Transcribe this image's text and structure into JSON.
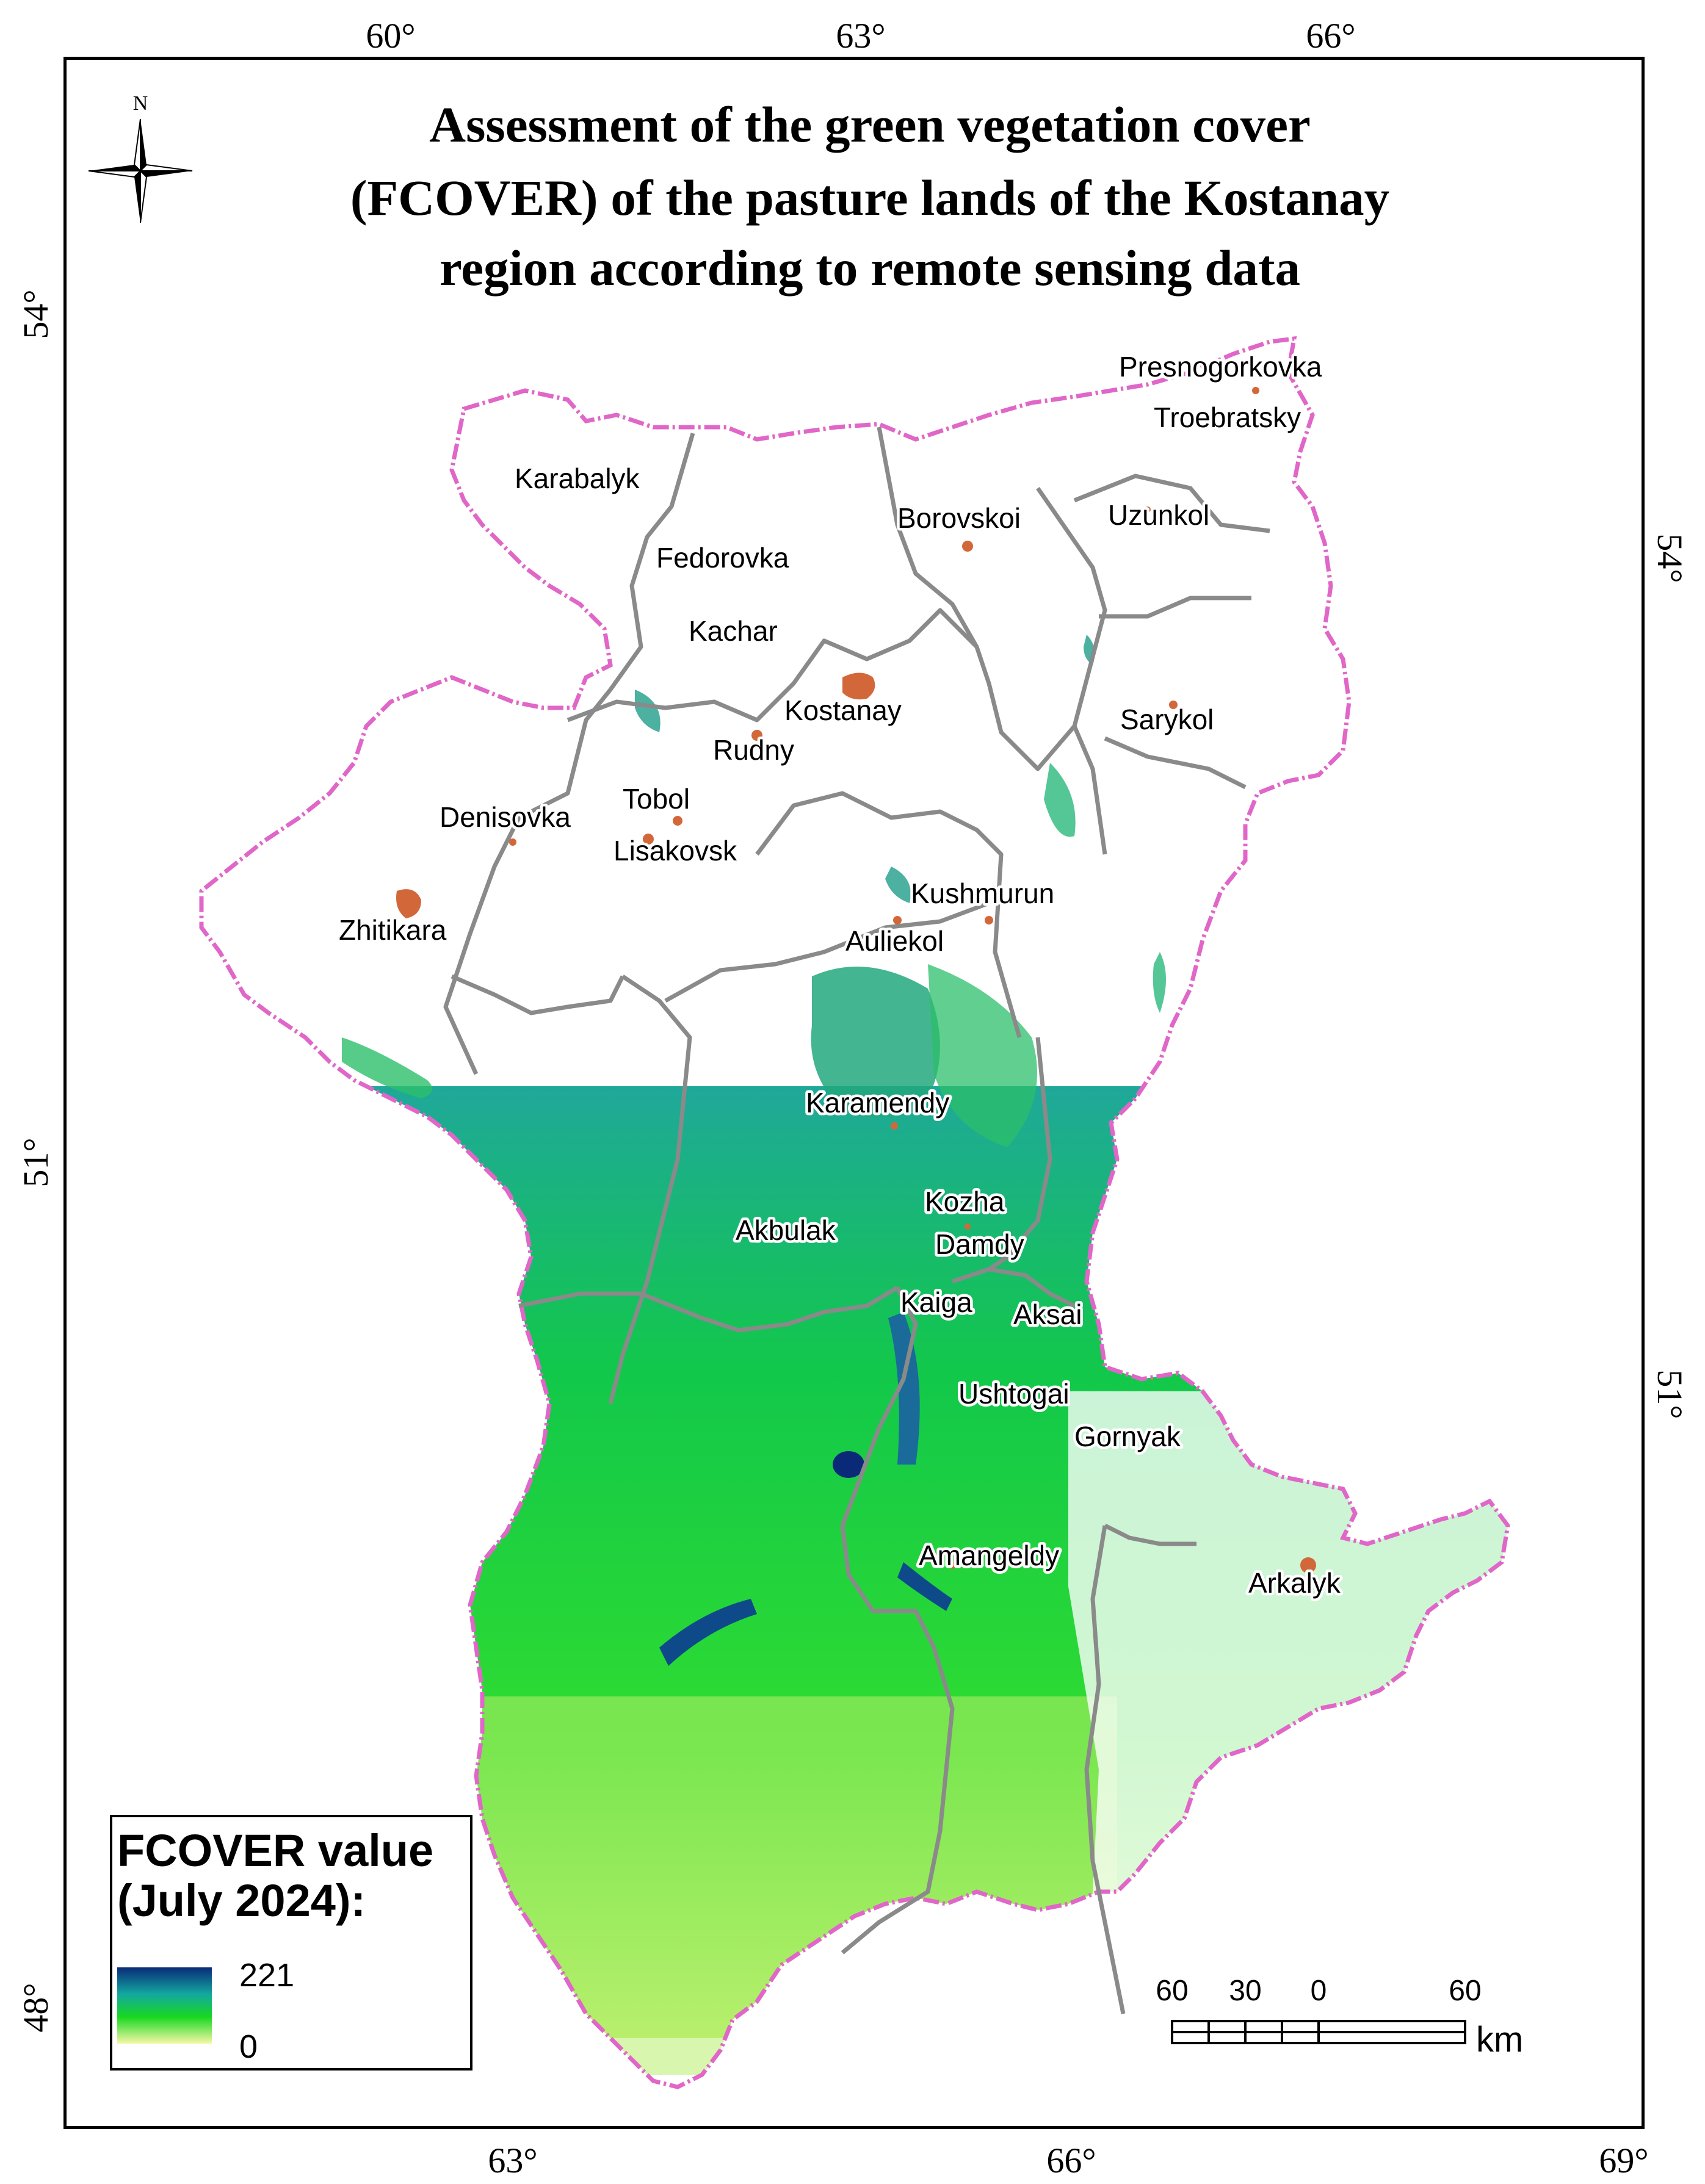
{
  "title": {
    "line1": "Assessment of the green vegetation cover",
    "line2": "(FCOVER) of the pasture lands of the Kostanay",
    "line3": "region according to remote sensing data"
  },
  "north_arrow": {
    "label": "N"
  },
  "graticule": {
    "top": [
      "60°",
      "63°",
      "66°"
    ],
    "bottom": [
      "63°",
      "66°",
      "69°"
    ],
    "left": [
      "54°",
      "51°",
      "48°"
    ],
    "right": [
      "54°",
      "51°"
    ]
  },
  "places": [
    "Presnogorkovka",
    "Troebratsky",
    "Karabalyk",
    "Borovskoi",
    "Uzunkol",
    "Fedorovka",
    "Kachar",
    "Kostanay",
    "Sarykol",
    "Rudny",
    "Tobol",
    "Denisovka",
    "Lisakovsk",
    "Kushmurun",
    "Zhitikara",
    "Auliekol",
    "Karamendy",
    "Kozha",
    "Akbulak",
    "Damdy",
    "Kaiga",
    "Aksai",
    "Ushtogai",
    "Gornyak",
    "Amangeldy",
    "Arkalyk"
  ],
  "legend": {
    "title_line1": "FCOVER value",
    "title_line2": "(July 2024):",
    "max": "221",
    "min": "0"
  },
  "scale_bar": {
    "labels": [
      "60",
      "30",
      "0",
      "60"
    ],
    "unit": "km"
  },
  "colors": {
    "boundary": "#e066c8",
    "district": "#8a8a8a",
    "settlement": "#d2683a",
    "ramp_high": "#0a2a78",
    "ramp_mid": "#12a8a0",
    "ramp_green": "#18d820",
    "ramp_low": "#f6f7a8"
  }
}
